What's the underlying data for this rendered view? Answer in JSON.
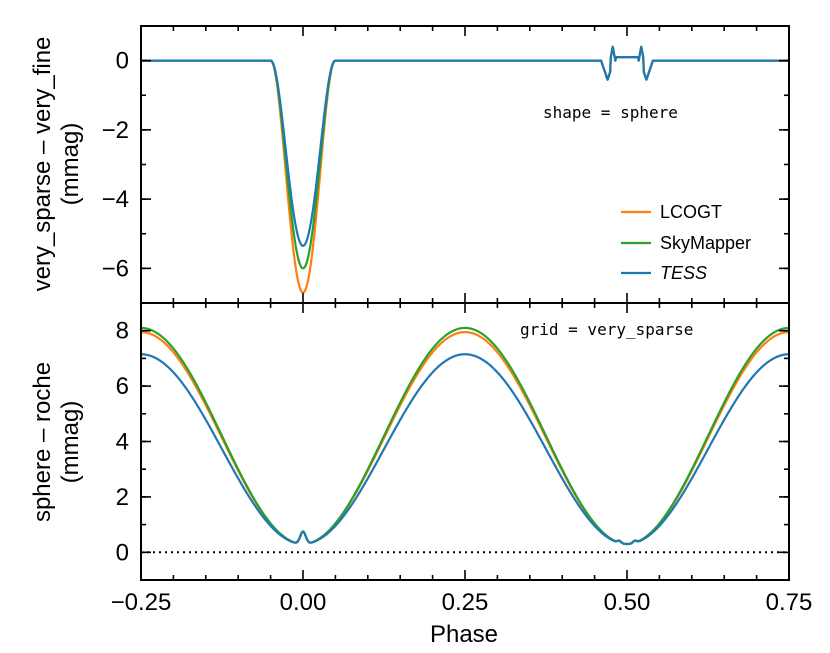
{
  "colors": {
    "lcogt": "#ff7f0e",
    "skymapper": "#2ca02c",
    "tess": "#1f77b4"
  },
  "chart_data": [
    {
      "type": "line",
      "panel": "top",
      "ylabel_line1": "very_sparse – very_fine",
      "ylabel_line2": "(mmag)",
      "xlim": [
        -0.25,
        0.75
      ],
      "ylim": [
        -7.0,
        1.0
      ],
      "yticks": [
        0,
        -2,
        -4,
        -6
      ],
      "ytick_labels": [
        "0",
        "−2",
        "−4",
        "−6"
      ],
      "annotation": "shape = sphere",
      "legend": {
        "placement": "lower-right",
        "entries": [
          "LCOGT",
          "SkyMapper",
          "TESS"
        ]
      },
      "series": [
        {
          "name": "LCOGT",
          "color": "#ff7f0e",
          "eclipse_depth": -6.7,
          "secondary_feature": 0.4
        },
        {
          "name": "SkyMapper",
          "color": "#2ca02c",
          "eclipse_depth": -6.0,
          "secondary_feature": 0.4
        },
        {
          "name": "TESS",
          "color": "#1f77b4",
          "eclipse_depth": -5.35,
          "secondary_feature": 0.4
        }
      ]
    },
    {
      "type": "line",
      "panel": "bottom",
      "ylabel_line1": "sphere – roche",
      "ylabel_line2": "(mmag)",
      "xlabel": "Phase",
      "xlim": [
        -0.25,
        0.75
      ],
      "ylim": [
        -1.0,
        9.0
      ],
      "yticks": [
        0,
        2,
        4,
        6,
        8
      ],
      "ytick_labels": [
        "0",
        "2",
        "4",
        "6",
        "8"
      ],
      "xticks": [
        -0.25,
        0.0,
        0.25,
        0.5,
        0.75
      ],
      "xtick_labels": [
        "−0.25",
        "0.00",
        "0.25",
        "0.50",
        "0.75"
      ],
      "annotation": "grid = very_sparse",
      "reference_line": 0,
      "series": [
        {
          "name": "LCOGT",
          "color": "#ff7f0e",
          "peak": 7.95,
          "min": 0.3
        },
        {
          "name": "SkyMapper",
          "color": "#2ca02c",
          "peak": 8.1,
          "min": 0.3
        },
        {
          "name": "TESS",
          "color": "#1f77b4",
          "peak": 7.15,
          "min": 0.3
        }
      ]
    }
  ]
}
